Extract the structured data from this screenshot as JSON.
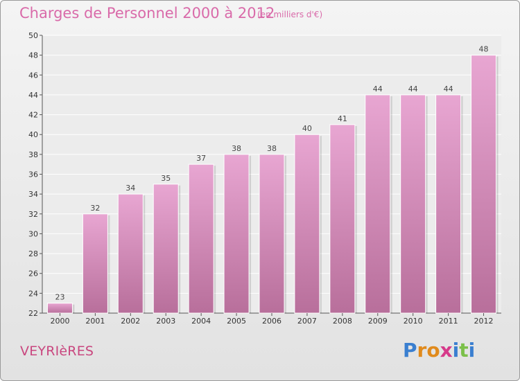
{
  "header": {
    "title": "Charges de Personnel 2000 à 2012",
    "subtitle": "(en milliers d'€)"
  },
  "footer": {
    "town": "VEYRIèRES",
    "logo": [
      "P",
      "r",
      "o",
      "x",
      "i",
      "t",
      "i"
    ]
  },
  "colors": {
    "title": "#d96aa9",
    "bar_top": "#e8a6d2",
    "bar_bottom": "#b86f9b",
    "town": "#c9477f",
    "logo": [
      "#3a7fd0",
      "#e08a1c",
      "#e08a1c",
      "#d63a8a",
      "#3a7fd0",
      "#7cc04a",
      "#3a7fd0"
    ]
  },
  "chart_data": {
    "type": "bar",
    "title": "Charges de Personnel 2000 à 2012",
    "subtitle": "(en milliers d'€)",
    "categories": [
      "2000",
      "2001",
      "2002",
      "2003",
      "2004",
      "2005",
      "2006",
      "2007",
      "2008",
      "2009",
      "2010",
      "2011",
      "2012"
    ],
    "values": [
      23,
      32,
      34,
      35,
      37,
      38,
      38,
      40,
      41,
      44,
      44,
      44,
      48
    ],
    "ylim": [
      22,
      50
    ],
    "yticks": [
      22,
      24,
      26,
      28,
      30,
      32,
      34,
      36,
      38,
      40,
      42,
      44,
      46,
      48,
      50
    ],
    "grid": true
  }
}
